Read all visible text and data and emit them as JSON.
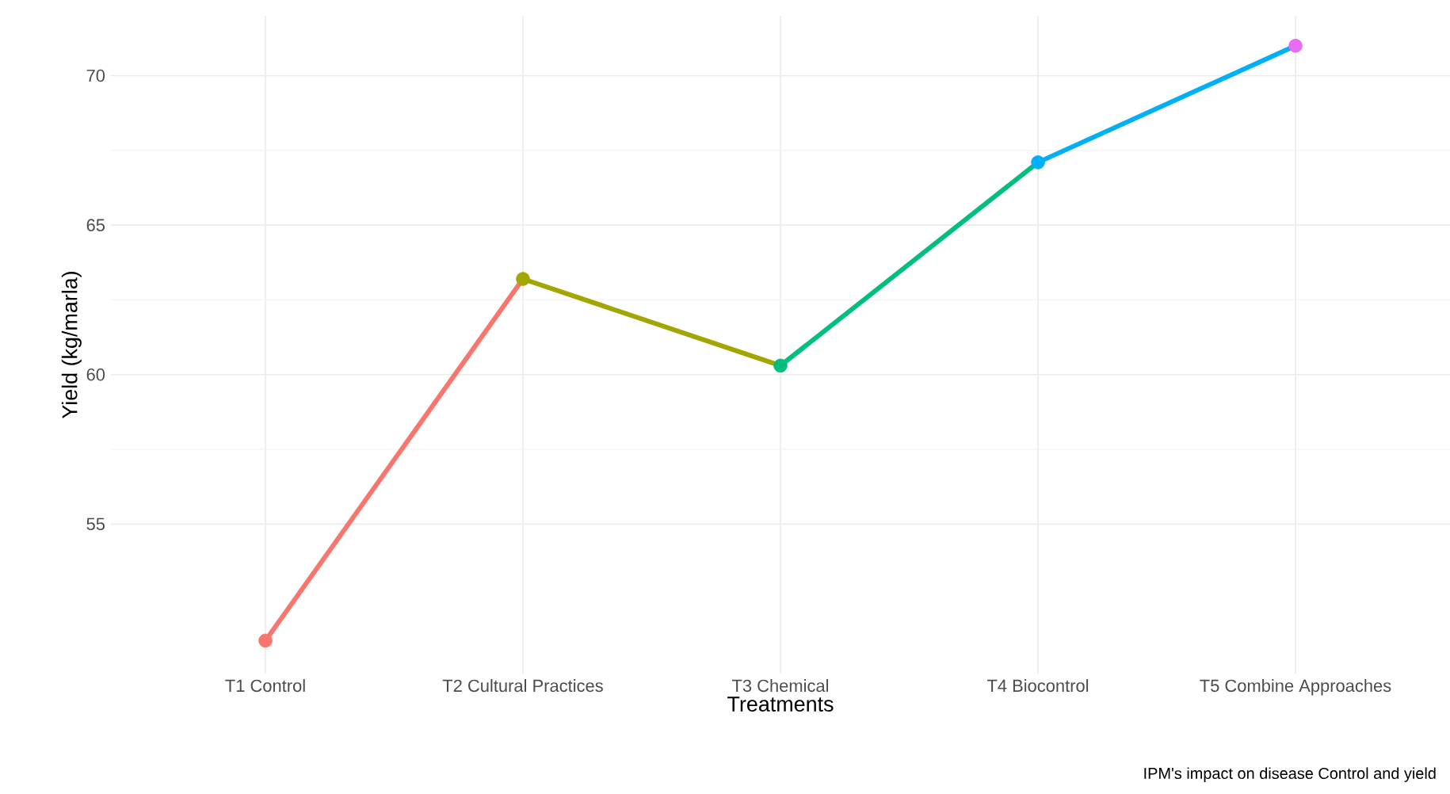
{
  "chart_data": {
    "type": "line",
    "xlabel": "Treatments",
    "ylabel": "Yield (kg/marla)",
    "categories": [
      "T1 Control",
      "T2 Cultural Practices",
      "T3 Chemical",
      "T4 Biocontrol",
      "T5 Combine Approaches"
    ],
    "series": [
      {
        "color": "#f8766d",
        "values": [
          51.1,
          63.2,
          null,
          null,
          null
        ]
      },
      {
        "color": "#a3a500",
        "values": [
          null,
          63.2,
          60.3,
          null,
          null
        ]
      },
      {
        "color": "#00bf7d",
        "values": [
          null,
          null,
          60.3,
          67.1,
          null
        ]
      },
      {
        "color": "#00b0f6",
        "values": [
          null,
          null,
          null,
          67.1,
          71.0
        ]
      },
      {
        "type": "scatter",
        "marker": "circle",
        "colors": [
          "#f8766d",
          "#a3a500",
          "#00bf7d",
          "#00b0f6",
          "#e76bf3"
        ],
        "values": [
          51.1,
          63.2,
          60.3,
          67.1,
          71.0
        ]
      }
    ],
    "ylim": [
      50,
      72
    ],
    "yticks": [
      55,
      60,
      65,
      70
    ],
    "grid": true,
    "line_style": "solid",
    "annotations": [
      "IPM's impact on disease Control and yield"
    ]
  }
}
